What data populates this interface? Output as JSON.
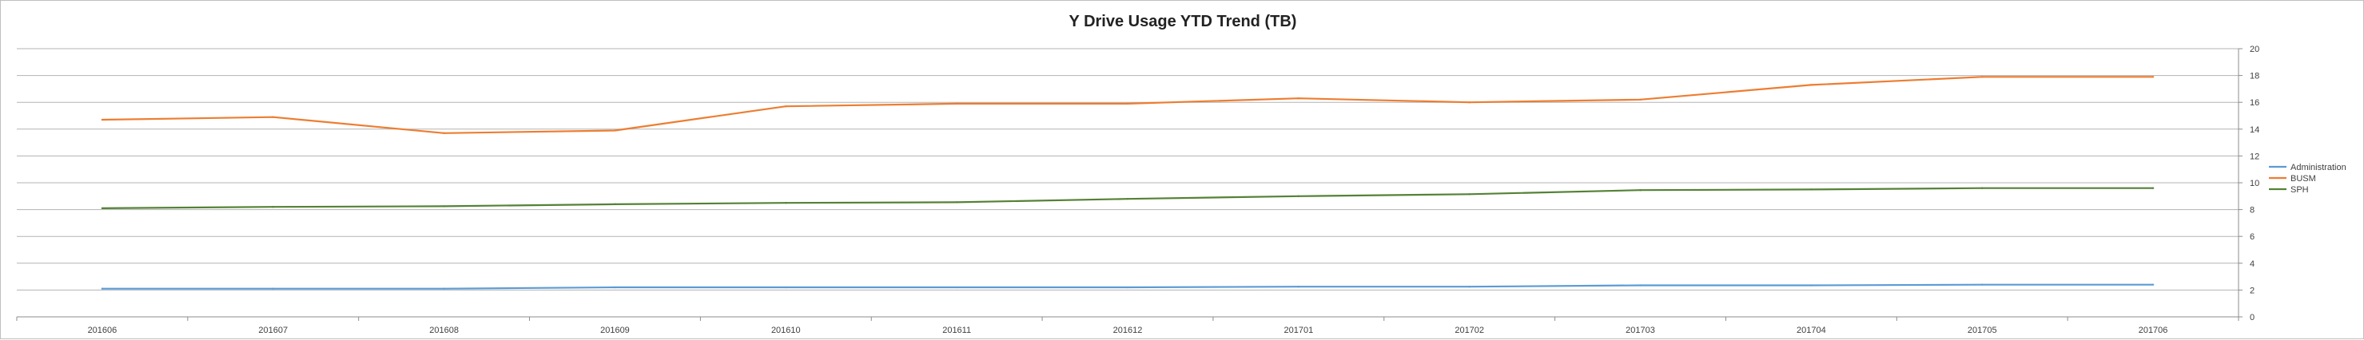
{
  "chart_data": {
    "type": "line",
    "title": "Y Drive Usage YTD Trend (TB)",
    "xlabel": "",
    "ylabel": "",
    "categories": [
      "201606",
      "201607",
      "201608",
      "201609",
      "201610",
      "201611",
      "201612",
      "201701",
      "201702",
      "201703",
      "201704",
      "201705",
      "201706"
    ],
    "ylim": [
      0,
      20
    ],
    "ytick_step": 2,
    "y_axis_side": "right",
    "grid": true,
    "legend_position": "right",
    "series": [
      {
        "name": "Administration",
        "color": "#5b9bd5",
        "values": [
          2.1,
          2.1,
          2.1,
          2.2,
          2.2,
          2.2,
          2.2,
          2.25,
          2.25,
          2.35,
          2.35,
          2.4,
          2.4
        ]
      },
      {
        "name": "BUSM",
        "color": "#ed7d31",
        "values": [
          14.7,
          14.9,
          13.7,
          13.9,
          15.7,
          15.9,
          15.9,
          16.3,
          16.0,
          16.2,
          17.3,
          17.9,
          17.9
        ]
      },
      {
        "name": "SPH",
        "color": "#548235",
        "values": [
          8.1,
          8.2,
          8.25,
          8.4,
          8.5,
          8.55,
          8.8,
          9.0,
          9.15,
          9.45,
          9.5,
          9.6,
          9.6
        ]
      }
    ]
  }
}
